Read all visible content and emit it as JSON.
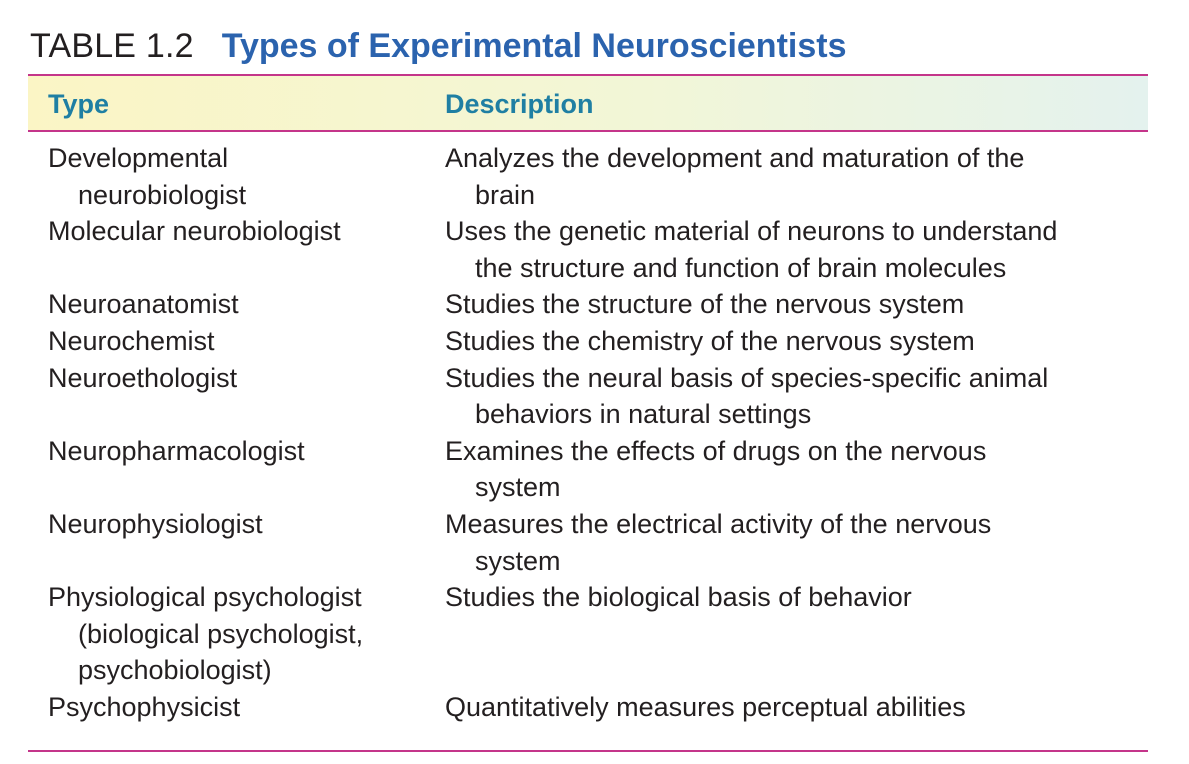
{
  "table": {
    "number": "TABLE 1.2",
    "title": "Types of Experimental Neuroscientists",
    "headers": {
      "type": "Type",
      "description": "Description"
    },
    "rows": [
      {
        "type_lines": [
          "Developmental",
          "neurobiologist"
        ],
        "desc_lines": [
          "Analyzes the development and maturation of the",
          "brain"
        ]
      },
      {
        "type_lines": [
          "Molecular neurobiologist"
        ],
        "desc_lines": [
          "Uses the genetic material of neurons to understand",
          "the structure and function of brain molecules"
        ]
      },
      {
        "type_lines": [
          "Neuroanatomist"
        ],
        "desc_lines": [
          "Studies the structure of the nervous system"
        ]
      },
      {
        "type_lines": [
          "Neurochemist"
        ],
        "desc_lines": [
          "Studies the chemistry of the nervous system"
        ]
      },
      {
        "type_lines": [
          "Neuroethologist"
        ],
        "desc_lines": [
          "Studies the neural basis of species-specific animal",
          "behaviors in natural settings"
        ]
      },
      {
        "type_lines": [
          "Neuropharmacologist"
        ],
        "desc_lines": [
          "Examines the effects of drugs on the nervous",
          "system"
        ]
      },
      {
        "type_lines": [
          "Neurophysiologist"
        ],
        "desc_lines": [
          "Measures the electrical activity of the nervous",
          "system"
        ]
      },
      {
        "type_lines": [
          "Physiological psychologist",
          "(biological psychologist,",
          "psychobiologist)"
        ],
        "desc_lines": [
          "Studies the biological basis of behavior"
        ]
      },
      {
        "type_lines": [
          "Psychophysicist"
        ],
        "desc_lines": [
          "Quantitatively measures perceptual abilities"
        ]
      }
    ]
  },
  "colors": {
    "title_blue": "#2b63ae",
    "header_teal": "#1f7fa3",
    "rule_magenta": "#c4358a",
    "text": "#231f20"
  }
}
